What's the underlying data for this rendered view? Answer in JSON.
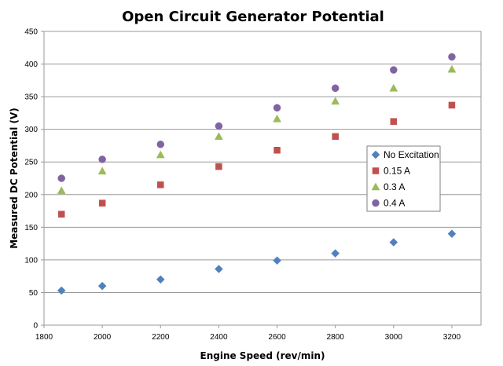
{
  "chart_data": {
    "type": "scatter",
    "title": "Open Circuit Generator Potential",
    "xlabel": "Engine Speed (rev/min)",
    "ylabel": "Measured DC Potential (V)",
    "xlim": [
      1800,
      3300
    ],
    "ylim": [
      0,
      450
    ],
    "xticks": [
      1800,
      2000,
      2200,
      2400,
      2600,
      2800,
      3000,
      3200
    ],
    "yticks": [
      0,
      50,
      100,
      150,
      200,
      250,
      300,
      350,
      400,
      450
    ],
    "x": [
      1860,
      2000,
      2200,
      2400,
      2600,
      2800,
      3000,
      3200
    ],
    "grid": "horizontal",
    "legend_position": "right",
    "series": [
      {
        "name": "No Excitation",
        "marker": "diamond",
        "color": "#4f81bd",
        "values": [
          53,
          60,
          70,
          86,
          99,
          110,
          127,
          140
        ]
      },
      {
        "name": "0.15 A",
        "marker": "square",
        "color": "#c0504d",
        "values": [
          170,
          187,
          215,
          243,
          268,
          289,
          312,
          337
        ]
      },
      {
        "name": "0.3 A",
        "marker": "triangle",
        "color": "#9bbb59",
        "values": [
          206,
          236,
          261,
          289,
          316,
          343,
          363,
          392
        ]
      },
      {
        "name": "0.4 A",
        "marker": "circle",
        "color": "#8064a2",
        "values": [
          225,
          254,
          277,
          305,
          333,
          363,
          391,
          411
        ]
      }
    ]
  }
}
